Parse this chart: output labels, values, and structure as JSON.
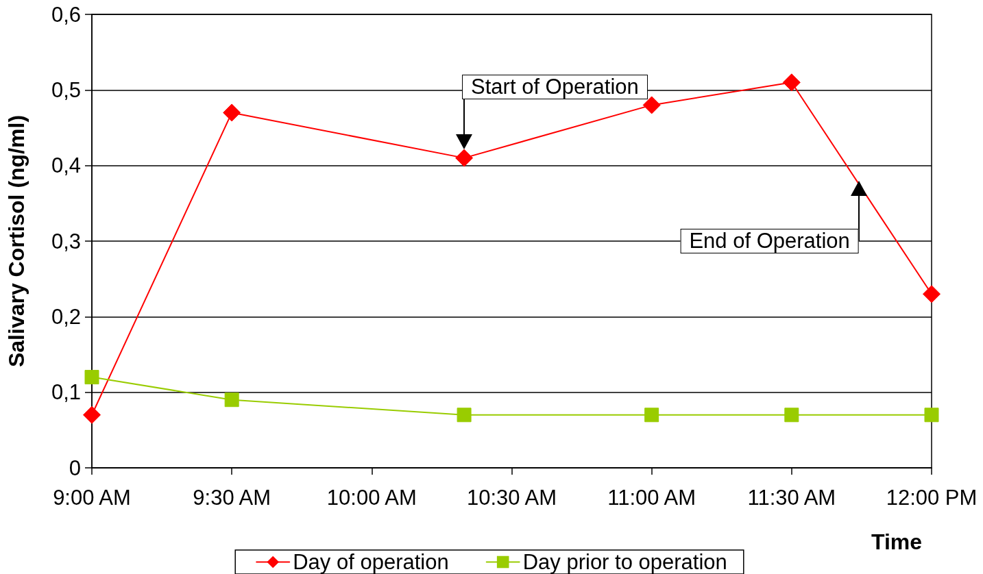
{
  "chart_data": {
    "type": "line",
    "xlabel": "Time",
    "ylabel": "Salivary Cortisol (ng/ml)",
    "x": [
      9,
      9.5,
      10.33,
      11,
      11.5,
      12
    ],
    "series": [
      {
        "name": "Day of operation",
        "color": "#ff0000",
        "marker": "diamond",
        "values": [
          0.07,
          0.47,
          0.41,
          0.48,
          0.51,
          0.23
        ]
      },
      {
        "name": "Day prior to operation",
        "color": "#99cc00",
        "marker": "square",
        "values": [
          0.12,
          0.09,
          0.07,
          0.07,
          0.07,
          0.07
        ]
      }
    ],
    "xlim": [
      9,
      12
    ],
    "xticks": [
      {
        "value": 9,
        "label": "9:00 AM"
      },
      {
        "value": 9.5,
        "label": "9:30 AM"
      },
      {
        "value": 10,
        "label": "10:00 AM"
      },
      {
        "value": 10.5,
        "label": "10:30 AM"
      },
      {
        "value": 11,
        "label": "11:00 AM"
      },
      {
        "value": 11.5,
        "label": "11:30 AM"
      },
      {
        "value": 12,
        "label": "12:00 PM"
      }
    ],
    "ylim": [
      0,
      0.6
    ],
    "yticks": [
      0,
      {
        "value": 0.1,
        "label": "0,1"
      },
      {
        "value": 0.2,
        "label": "0,2"
      },
      {
        "value": 0.3,
        "label": "0,3"
      },
      {
        "value": 0.4,
        "label": "0,4"
      },
      {
        "value": 0.5,
        "label": "0,5"
      },
      {
        "value": 0.6,
        "label": "0,6"
      }
    ],
    "grid": "y",
    "legend": "bottom",
    "line_style": "solid",
    "annotations": [
      {
        "text": "Start of Operation",
        "x": 10.33,
        "y": 0.41
      },
      {
        "text": "End of Operation",
        "x": 11.74,
        "y": 0.38
      }
    ]
  }
}
